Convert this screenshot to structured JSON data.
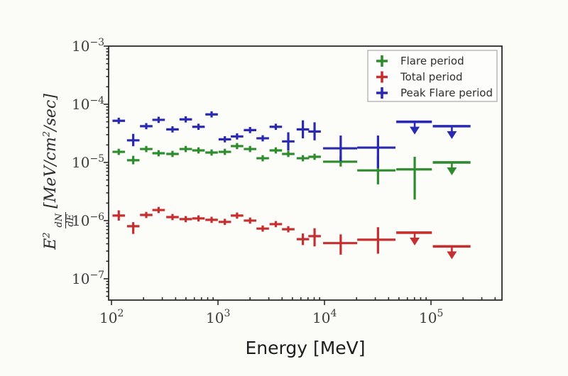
{
  "figure": {
    "background": "#fbfbf8"
  },
  "chart_data": {
    "type": "scatter",
    "title": "",
    "xlabel": "Energy [MeV]",
    "ylabel": "E^2 dN/dE [MeV/cm^2/sec]",
    "ylabel_parts": {
      "e": "E",
      "e_exp": "2",
      "num": "dN",
      "den": "dE",
      "units_pre": "[MeV/cm",
      "units_exp": "2",
      "units_post": "/sec]"
    },
    "xscale": "log",
    "yscale": "log",
    "xlim": [
      94,
      464000
    ],
    "ylim": [
      4.3e-08,
      0.001
    ],
    "grid": false,
    "x_ticks": [
      {
        "value": 100,
        "base": "10",
        "exp": "2"
      },
      {
        "value": 1000,
        "base": "10",
        "exp": "3"
      },
      {
        "value": 10000,
        "base": "10",
        "exp": "4"
      },
      {
        "value": 100000,
        "base": "10",
        "exp": "5"
      }
    ],
    "y_ticks": [
      {
        "value": 0.001,
        "base": "10",
        "exp": "−3"
      },
      {
        "value": 0.0001,
        "base": "10",
        "exp": "−4"
      },
      {
        "value": 1e-05,
        "base": "10",
        "exp": "−5"
      },
      {
        "value": 1e-06,
        "base": "10",
        "exp": "−6"
      },
      {
        "value": 1e-07,
        "base": "10",
        "exp": "−7"
      }
    ],
    "legend": {
      "position": "upper right",
      "items": [
        {
          "label": "Flare period",
          "color": "#2e8b2e"
        },
        {
          "label": "Total period",
          "color": "#c62f2f"
        },
        {
          "label": "Peak Flare period",
          "color": "#2a2ab0"
        }
      ]
    },
    "series": [
      {
        "name": "Flare period",
        "color": "#2e8b2e",
        "points": [
          {
            "x": 117,
            "y": 1.52e-05
          },
          {
            "x": 160,
            "y": 1.09e-05,
            "ylo": 9.3e-06,
            "yhi": 1.3e-05
          },
          {
            "x": 212,
            "y": 1.7e-05
          },
          {
            "x": 277,
            "y": 1.44e-05
          },
          {
            "x": 374,
            "y": 1.4e-05
          },
          {
            "x": 498,
            "y": 1.7e-05
          },
          {
            "x": 656,
            "y": 1.61e-05
          },
          {
            "x": 871,
            "y": 1.48e-05
          },
          {
            "x": 1160,
            "y": 1.52e-05
          },
          {
            "x": 1510,
            "y": 1.91e-05
          },
          {
            "x": 2000,
            "y": 1.7e-05
          },
          {
            "x": 2630,
            "y": 1.18e-05
          },
          {
            "x": 3490,
            "y": 1.61e-05
          },
          {
            "x": 4570,
            "y": 1.4e-05
          },
          {
            "x": 6270,
            "y": 1.18e-05
          },
          {
            "x": 8070,
            "y": 1.25e-05
          },
          {
            "x": 14200,
            "y": 1.03e-05,
            "xlo": 9700,
            "xhi": 20300,
            "ylo": 8.5e-06,
            "yhi": 1.3e-05
          },
          {
            "x": 31800,
            "y": 7.3e-06,
            "xlo": 20300,
            "xhi": 46400,
            "ylo": 4.2e-06,
            "yhi": 1.3e-05
          },
          {
            "x": 70300,
            "y": 7.6e-06,
            "xlo": 47200,
            "xhi": 102000,
            "ylo": 2.3e-06,
            "yhi": 1.25e-05
          },
          {
            "x": 157000,
            "y": 1e-05,
            "xlo": 104000,
            "xhi": 235000,
            "ul": true
          }
        ]
      },
      {
        "name": "Total period",
        "color": "#c62f2f",
        "points": [
          {
            "x": 117,
            "y": 1.22e-06,
            "ylo": 1e-06,
            "yhi": 1.5e-06
          },
          {
            "x": 160,
            "y": 8e-07,
            "ylo": 5.9e-07,
            "yhi": 9.4e-07
          },
          {
            "x": 212,
            "y": 1.25e-06
          },
          {
            "x": 277,
            "y": 1.52e-06
          },
          {
            "x": 374,
            "y": 1.15e-06
          },
          {
            "x": 498,
            "y": 1.06e-06
          },
          {
            "x": 656,
            "y": 1.09e-06
          },
          {
            "x": 871,
            "y": 1.03e-06
          },
          {
            "x": 1160,
            "y": 9.5e-07
          },
          {
            "x": 1510,
            "y": 1.22e-06
          },
          {
            "x": 2000,
            "y": 1e-06
          },
          {
            "x": 2630,
            "y": 7.3e-07
          },
          {
            "x": 3490,
            "y": 8.7e-07
          },
          {
            "x": 4570,
            "y": 7.1e-07
          },
          {
            "x": 6270,
            "y": 4.8e-07,
            "ylo": 3.8e-07,
            "yhi": 6e-07
          },
          {
            "x": 8070,
            "y": 5.4e-07,
            "ylo": 3.6e-07,
            "yhi": 7.4e-07
          },
          {
            "x": 14200,
            "y": 4.1e-07,
            "xlo": 9700,
            "xhi": 20300,
            "ylo": 2.6e-07,
            "yhi": 5.8e-07
          },
          {
            "x": 31800,
            "y": 4.7e-07,
            "xlo": 20300,
            "xhi": 46400,
            "ylo": 2.7e-07,
            "yhi": 7.7e-07
          },
          {
            "x": 70300,
            "y": 6.2e-07,
            "xlo": 47200,
            "xhi": 102000,
            "ul": true
          },
          {
            "x": 157000,
            "y": 3.6e-07,
            "xlo": 104000,
            "xhi": 235000,
            "ul": true
          }
        ]
      },
      {
        "name": "Peak Flare period",
        "color": "#2a2ab0",
        "points": [
          {
            "x": 117,
            "y": 5.2e-05
          },
          {
            "x": 160,
            "y": 2.4e-05,
            "ylo": 1.9e-05,
            "yhi": 3.1e-05
          },
          {
            "x": 212,
            "y": 4.2e-05
          },
          {
            "x": 277,
            "y": 5.4e-05
          },
          {
            "x": 374,
            "y": 3.7e-05
          },
          {
            "x": 498,
            "y": 5.5e-05
          },
          {
            "x": 656,
            "y": 4.1e-05
          },
          {
            "x": 871,
            "y": 6.7e-05
          },
          {
            "x": 1160,
            "y": 2.5e-05
          },
          {
            "x": 1510,
            "y": 2.8e-05
          },
          {
            "x": 2000,
            "y": 3.6e-05
          },
          {
            "x": 2630,
            "y": 2.6e-05
          },
          {
            "x": 3490,
            "y": 4.1e-05
          },
          {
            "x": 4570,
            "y": 2.3e-05,
            "ylo": 1.6e-05,
            "yhi": 3.3e-05
          },
          {
            "x": 6270,
            "y": 3.7e-05,
            "ylo": 2.6e-05,
            "yhi": 5.3e-05
          },
          {
            "x": 8070,
            "y": 3.4e-05,
            "ylo": 2.4e-05,
            "yhi": 4.9e-05
          },
          {
            "x": 14200,
            "y": 1.75e-05,
            "xlo": 9700,
            "xhi": 20300,
            "ylo": 1.05e-05,
            "yhi": 2.9e-05
          },
          {
            "x": 31800,
            "y": 1.8e-05,
            "xlo": 20300,
            "xhi": 46400,
            "ylo": 8e-06,
            "yhi": 2.9e-05
          },
          {
            "x": 70300,
            "y": 5e-05,
            "xlo": 47200,
            "xhi": 102000,
            "ul": true
          },
          {
            "x": 157000,
            "y": 4.2e-05,
            "xlo": 104000,
            "xhi": 235000,
            "ul": true
          }
        ]
      }
    ]
  }
}
